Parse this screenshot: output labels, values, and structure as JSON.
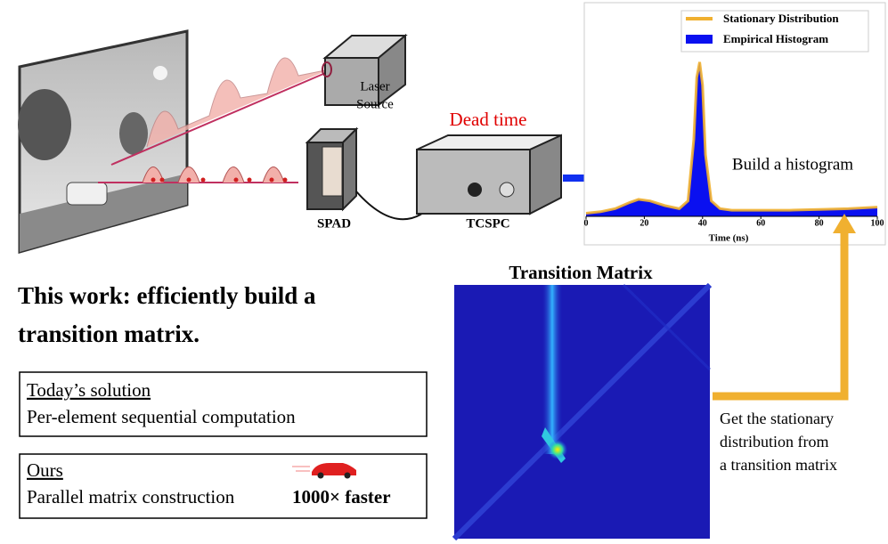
{
  "scene": {
    "laser": [
      "Laser",
      "Source"
    ],
    "dead_time": "Dead time",
    "spad": "SPAD",
    "tcspc": "TCSPC",
    "build": "Build a histogram"
  },
  "histogram": {
    "legend": [
      "Stationary Distribution",
      "Empirical Histogram"
    ],
    "xlabel": "Time (ns)",
    "xlim": [
      0,
      100
    ],
    "xticks": [
      0,
      20,
      40,
      60,
      80,
      100
    ],
    "ylim": [
      0,
      1.2
    ],
    "x": [
      0,
      5,
      10,
      15,
      18,
      22,
      27,
      32,
      35,
      37,
      38,
      39,
      40,
      41,
      43,
      46,
      50,
      60,
      70,
      80,
      90,
      100
    ],
    "y": [
      0.02,
      0.03,
      0.05,
      0.09,
      0.11,
      0.1,
      0.07,
      0.05,
      0.1,
      0.5,
      0.9,
      1.0,
      0.85,
      0.4,
      0.1,
      0.05,
      0.04,
      0.04,
      0.04,
      0.045,
      0.05,
      0.06
    ]
  },
  "matrix": {
    "title": "Transition Matrix",
    "caption": [
      "Get the stationary",
      "distribution from",
      "a transition matrix"
    ]
  },
  "claim": [
    "This work: efficiently build a",
    "transition matrix."
  ],
  "today": {
    "heading": "Today’s solution",
    "text": "Per-element sequential computation"
  },
  "ours": {
    "heading": "Ours",
    "text": "Parallel matrix construction",
    "speed": "1000× faster"
  }
}
